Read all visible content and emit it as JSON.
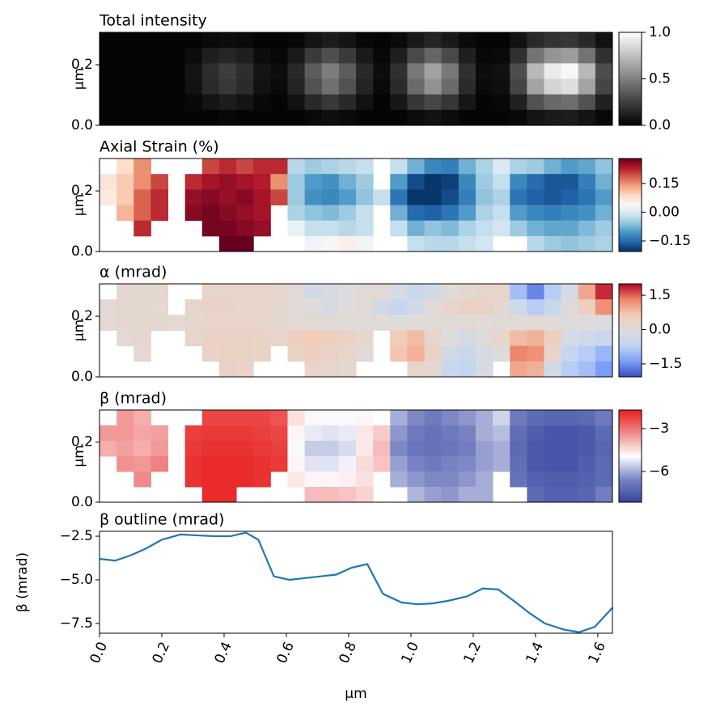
{
  "chart_data": [
    {
      "type": "heatmap",
      "title": "Total intensity",
      "ylabel": "µm",
      "xlim": [
        0,
        1.647
      ],
      "ylim": [
        0,
        0.307
      ],
      "yticks": [
        {
          "value": 0,
          "label": "0.0"
        },
        0.2
      ],
      "colormap": [
        "#000000",
        "#ffffff"
      ],
      "clim": [
        0,
        1
      ],
      "cticks": [
        {
          "value": 0,
          "label": "0.0"
        },
        0.5,
        {
          "value": 1,
          "label": "1.0"
        }
      ],
      "z": [
        [
          0.02,
          0.02,
          0.02,
          0.02,
          0.02,
          0.02,
          0.04,
          0.05,
          0.04,
          0.02,
          0.02,
          0.03,
          0.08,
          0.11,
          0.08,
          0.03,
          0.02,
          0.04,
          0.1,
          0.14,
          0.1,
          0.04,
          0.02,
          0.02,
          0.07,
          0.16,
          0.2,
          0.21,
          0.16,
          0.07
        ],
        [
          0.02,
          0.02,
          0.02,
          0.02,
          0.02,
          0.05,
          0.12,
          0.15,
          0.12,
          0.05,
          0.03,
          0.1,
          0.23,
          0.31,
          0.23,
          0.1,
          0.03,
          0.12,
          0.29,
          0.4,
          0.29,
          0.12,
          0.03,
          0.04,
          0.19,
          0.45,
          0.58,
          0.61,
          0.45,
          0.19
        ],
        [
          0.02,
          0.02,
          0.02,
          0.02,
          0.02,
          0.08,
          0.18,
          0.24,
          0.18,
          0.08,
          0.05,
          0.16,
          0.36,
          0.49,
          0.36,
          0.16,
          0.05,
          0.19,
          0.47,
          0.63,
          0.47,
          0.19,
          0.05,
          0.07,
          0.3,
          0.72,
          0.92,
          0.97,
          0.72,
          0.3
        ],
        [
          0.02,
          0.02,
          0.02,
          0.02,
          0.02,
          0.07,
          0.17,
          0.22,
          0.17,
          0.07,
          0.04,
          0.14,
          0.32,
          0.44,
          0.32,
          0.14,
          0.04,
          0.17,
          0.42,
          0.57,
          0.42,
          0.17,
          0.04,
          0.06,
          0.27,
          0.64,
          0.83,
          0.87,
          0.64,
          0.27
        ],
        [
          0.02,
          0.02,
          0.02,
          0.02,
          0.02,
          0.03,
          0.08,
          0.11,
          0.08,
          0.03,
          0.02,
          0.07,
          0.16,
          0.22,
          0.16,
          0.07,
          0.02,
          0.09,
          0.21,
          0.28,
          0.21,
          0.09,
          0.02,
          0.03,
          0.13,
          0.32,
          0.41,
          0.43,
          0.32,
          0.13
        ],
        [
          0.02,
          0.02,
          0.02,
          0.02,
          0.02,
          0.02,
          0.02,
          0.03,
          0.02,
          0.02,
          0.02,
          0.02,
          0.04,
          0.06,
          0.04,
          0.02,
          0.02,
          0.02,
          0.05,
          0.07,
          0.05,
          0.02,
          0.02,
          0.02,
          0.03,
          0.08,
          0.1,
          0.11,
          0.08,
          0.03
        ]
      ]
    },
    {
      "type": "heatmap",
      "title": "Axial Strain (%)",
      "ylabel": "µm",
      "xlim": [
        0,
        1.647
      ],
      "ylim": [
        0,
        0.307
      ],
      "yticks": [
        {
          "value": 0,
          "label": "0.0"
        },
        0.2
      ],
      "colormap": [
        "#053061",
        "#2166ac",
        "#4393c3",
        "#92c5de",
        "#d1e5f0",
        "#f7f7f7",
        "#fddbc7",
        "#f4a582",
        "#d6604d",
        "#b2182b",
        "#67001f"
      ],
      "clim": [
        -0.205,
        0.28
      ],
      "cticks": [
        {
          "value": -0.15,
          "label": "−0.15"
        },
        {
          "value": 0,
          "label": "0.00"
        },
        0.15
      ],
      "z": [
        [
          null,
          0.08,
          0.15,
          null,
          null,
          null,
          0.2,
          0.22,
          0.2,
          0.22,
          0.22,
          -0.03,
          -0.05,
          -0.04,
          -0.03,
          -0.02,
          null,
          -0.02,
          -0.08,
          -0.12,
          -0.13,
          -0.08,
          -0.04,
          0.0,
          -0.04,
          -0.05,
          -0.08,
          -0.1,
          -0.09,
          -0.06
        ],
        [
          0.07,
          0.1,
          0.15,
          0.2,
          null,
          0.22,
          0.24,
          0.25,
          0.24,
          0.23,
          0.15,
          -0.05,
          -0.1,
          -0.11,
          -0.08,
          -0.05,
          null,
          -0.1,
          -0.18,
          -0.2,
          -0.19,
          -0.12,
          -0.05,
          -0.02,
          -0.12,
          -0.15,
          -0.17,
          -0.17,
          -0.13,
          -0.08
        ],
        [
          0.06,
          0.1,
          0.18,
          0.22,
          null,
          0.25,
          0.26,
          0.25,
          0.26,
          0.24,
          0.2,
          -0.05,
          -0.11,
          -0.12,
          -0.1,
          -0.06,
          -0.02,
          -0.14,
          -0.2,
          -0.2,
          -0.18,
          -0.13,
          -0.06,
          -0.04,
          -0.14,
          -0.16,
          -0.17,
          -0.16,
          -0.14,
          -0.1
        ],
        [
          null,
          0.12,
          0.18,
          0.22,
          null,
          0.26,
          0.27,
          0.26,
          0.25,
          0.24,
          null,
          -0.04,
          -0.06,
          -0.07,
          -0.05,
          -0.02,
          null,
          -0.08,
          -0.15,
          -0.16,
          -0.14,
          -0.1,
          -0.04,
          -0.02,
          -0.1,
          -0.12,
          -0.13,
          -0.12,
          -0.11,
          -0.08
        ],
        [
          null,
          null,
          0.22,
          null,
          null,
          null,
          0.27,
          0.27,
          0.26,
          0.25,
          null,
          0.02,
          -0.02,
          -0.02,
          -0.03,
          -0.02,
          null,
          -0.02,
          -0.08,
          -0.06,
          -0.07,
          -0.04,
          -0.02,
          -0.01,
          -0.05,
          -0.08,
          -0.09,
          -0.09,
          -0.07,
          -0.05
        ],
        [
          null,
          null,
          null,
          null,
          null,
          null,
          null,
          0.28,
          0.28,
          null,
          null,
          null,
          0.03,
          0.04,
          0.05,
          0.03,
          null,
          null,
          -0.02,
          -0.03,
          -0.03,
          -0.02,
          -0.01,
          null,
          null,
          -0.03,
          -0.05,
          -0.06,
          -0.05,
          -0.04
        ]
      ]
    },
    {
      "type": "heatmap",
      "title": "α (mrad)",
      "ylabel": "µm",
      "xlim": [
        0,
        1.647
      ],
      "ylim": [
        0,
        0.307
      ],
      "yticks": [
        {
          "value": 0,
          "label": "0.0"
        },
        0.2
      ],
      "colormap": [
        "#3b4cc0",
        "#7b9ff9",
        "#c0d4f5",
        "#dddddd",
        "#f2cbb7",
        "#ee8468",
        "#b40426"
      ],
      "clim": [
        -2.07,
        2.0
      ],
      "cticks": [
        {
          "value": -1.5,
          "label": "−1.5"
        },
        {
          "value": 0,
          "label": "0.0"
        },
        1.5
      ],
      "z": [
        [
          null,
          0.2,
          0.2,
          0.2,
          null,
          null,
          0.3,
          0.3,
          0.3,
          0.3,
          0.25,
          0.1,
          -0.3,
          -0.2,
          -0.1,
          0.1,
          0.1,
          -0.2,
          -0.5,
          -0.3,
          0.0,
          0.2,
          0.3,
          0.3,
          -1.0,
          -1.6,
          -0.8,
          -0.2,
          1.0,
          1.8
        ],
        [
          0.15,
          0.2,
          0.2,
          0.15,
          null,
          0.25,
          0.35,
          0.35,
          0.3,
          0.3,
          0.2,
          0.1,
          0.0,
          -0.2,
          0.0,
          0.1,
          -0.3,
          -0.6,
          -0.3,
          0.1,
          0.3,
          0.4,
          0.4,
          0.2,
          -0.4,
          -0.8,
          -0.5,
          0.1,
          0.5,
          1.2
        ],
        [
          0.15,
          0.2,
          0.2,
          0.2,
          0.15,
          0.2,
          0.3,
          0.3,
          0.3,
          0.3,
          0.2,
          0.15,
          0.1,
          0.05,
          0.05,
          0.05,
          0.05,
          0.0,
          0.05,
          0.05,
          0.1,
          0.1,
          0.05,
          0.1,
          0.1,
          0.15,
          0.05,
          0.0,
          0.0,
          -0.1
        ],
        [
          null,
          0.15,
          0.2,
          null,
          null,
          0.3,
          0.4,
          0.4,
          0.4,
          0.35,
          0.3,
          0.5,
          0.6,
          0.5,
          0.4,
          0.2,
          null,
          0.6,
          0.8,
          0.3,
          0.0,
          -0.2,
          0.0,
          0.3,
          0.8,
          0.9,
          0.5,
          -0.2,
          -0.4,
          -0.5
        ],
        [
          null,
          null,
          0.15,
          null,
          null,
          null,
          0.35,
          0.45,
          0.4,
          0.35,
          null,
          0.4,
          0.5,
          0.4,
          0.3,
          0.1,
          null,
          0.7,
          0.9,
          0.4,
          -0.3,
          -0.5,
          -0.2,
          0.0,
          1.3,
          1.2,
          0.3,
          -0.6,
          -0.8,
          -1.1
        ],
        [
          null,
          null,
          null,
          null,
          null,
          null,
          null,
          0.4,
          0.35,
          null,
          null,
          null,
          0.3,
          0.25,
          0.2,
          null,
          null,
          null,
          0.3,
          0.2,
          -0.5,
          -0.6,
          -0.2,
          null,
          1.0,
          0.9,
          -0.3,
          -0.8,
          -1.0,
          -1.4
        ]
      ]
    },
    {
      "type": "heatmap",
      "title": "β (mrad)",
      "ylabel": "µm",
      "xlim": [
        0,
        1.647
      ],
      "ylim": [
        0,
        0.307
      ],
      "yticks": [
        {
          "value": 0,
          "label": "0.0"
        },
        0.2
      ],
      "colormap": [
        "#34449e",
        "#7a85c4",
        "#ffffff",
        "#f08a8a",
        "#e81e1e"
      ],
      "clim": [
        -8.15,
        -1.7
      ],
      "cticks": [
        {
          "value": -6,
          "label": "−6"
        },
        {
          "value": -3,
          "label": "−3"
        }
      ],
      "z": [
        [
          null,
          -3.5,
          -3.8,
          null,
          null,
          null,
          -2.3,
          -2.3,
          -2.3,
          -2.3,
          -2.5,
          -4.5,
          -5.0,
          -5.0,
          -5.0,
          -4.8,
          null,
          -6.0,
          -6.5,
          -6.8,
          -6.5,
          -6.3,
          -6.0,
          -5.5,
          -6.8,
          -7.2,
          -7.3,
          -7.3,
          -7.2,
          -6.8
        ],
        [
          -3.5,
          -3.5,
          -3.7,
          -3.6,
          null,
          -2.2,
          -2.1,
          -2.1,
          -2.1,
          -2.2,
          -2.3,
          -4.8,
          -5.2,
          -5.3,
          -5.2,
          -4.6,
          -4.2,
          -6.3,
          -6.8,
          -7.0,
          -6.8,
          -6.6,
          -6.0,
          -5.8,
          -7.1,
          -7.5,
          -7.7,
          -7.7,
          -7.6,
          -7.2
        ],
        [
          -3.8,
          -3.6,
          -3.8,
          -3.5,
          null,
          -2.1,
          -2.0,
          -2.0,
          -2.0,
          -2.1,
          -2.2,
          -5.0,
          -5.6,
          -5.6,
          -5.4,
          -4.6,
          -4.0,
          -6.5,
          -6.9,
          -7.0,
          -6.9,
          -6.7,
          -6.2,
          -6.0,
          -7.2,
          -7.6,
          -7.7,
          -7.7,
          -7.6,
          -7.3
        ],
        [
          null,
          -3.4,
          -3.5,
          -3.2,
          null,
          -2.0,
          -1.9,
          -1.9,
          -1.9,
          -2.0,
          -2.1,
          -4.8,
          -5.3,
          -5.3,
          -5.1,
          -4.4,
          -4.1,
          -6.2,
          -6.6,
          -6.8,
          -6.6,
          -6.5,
          -6.2,
          -6.0,
          -7.1,
          -7.6,
          -7.7,
          -7.7,
          -7.5,
          -7.2
        ],
        [
          null,
          null,
          -3.3,
          null,
          null,
          -2.0,
          -1.9,
          -1.9,
          -1.9,
          -2.0,
          null,
          -4.6,
          -4.8,
          -4.8,
          -4.7,
          -4.5,
          null,
          -6.0,
          -6.3,
          -6.5,
          -6.5,
          -6.3,
          -6.0,
          null,
          -7.0,
          -7.4,
          -7.5,
          -7.5,
          -7.4,
          -7.2
        ],
        [
          null,
          null,
          null,
          null,
          null,
          null,
          -1.9,
          -1.9,
          null,
          null,
          null,
          null,
          -4.0,
          -4.0,
          -4.1,
          -4.3,
          null,
          null,
          -5.9,
          -6.2,
          -6.3,
          -6.0,
          -6.0,
          null,
          null,
          -7.2,
          -7.4,
          -7.4,
          -7.3,
          -6.7
        ]
      ]
    },
    {
      "type": "line",
      "title": "β outline (mrad)",
      "ylabel": "β (mrad)",
      "xlabel": "µm",
      "color": "#1f77b4",
      "xlim": [
        0,
        1.647
      ],
      "ylim": [
        -8.06,
        -2.22
      ],
      "xticks": [
        {
          "value": 0,
          "label": "0.0"
        },
        0.2,
        0.4,
        0.6,
        0.8,
        {
          "value": 1,
          "label": "1.0"
        },
        1.2,
        1.4,
        1.6
      ],
      "yticks": [
        {
          "value": -7.5,
          "label": "−7.5"
        },
        {
          "value": -5,
          "label": "−5.0"
        },
        {
          "value": -2.5,
          "label": "−2.5"
        }
      ],
      "x": [
        0,
        0.05,
        0.1,
        0.15,
        0.2,
        0.26,
        0.31,
        0.37,
        0.42,
        0.47,
        0.51,
        0.56,
        0.61,
        0.66,
        0.71,
        0.76,
        0.81,
        0.86,
        0.91,
        0.97,
        1.02,
        1.07,
        1.12,
        1.18,
        1.23,
        1.28,
        1.33,
        1.38,
        1.43,
        1.49,
        1.54,
        1.59,
        1.647
      ],
      "values": [
        -3.8,
        -3.9,
        -3.6,
        -3.2,
        -2.7,
        -2.4,
        -2.45,
        -2.5,
        -2.5,
        -2.3,
        -2.7,
        -4.8,
        -5.0,
        -4.9,
        -4.8,
        -4.7,
        -4.3,
        -4.1,
        -5.8,
        -6.3,
        -6.4,
        -6.35,
        -6.2,
        -5.95,
        -5.5,
        -5.55,
        -6.2,
        -6.9,
        -7.5,
        -7.85,
        -8.0,
        -7.7,
        -6.6
      ]
    }
  ]
}
